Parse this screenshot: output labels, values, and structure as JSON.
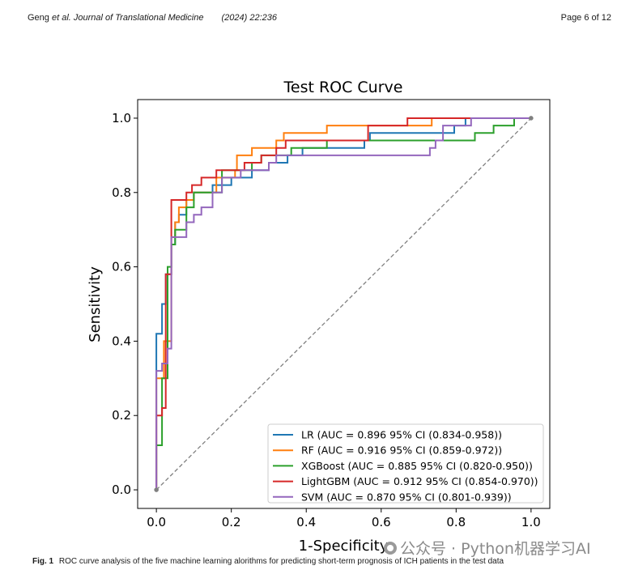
{
  "header": {
    "authors": "Geng ",
    "et_al": "et al.",
    "journal": " Journal of Translational Medicine",
    "citation": "(2024) 22:236",
    "page": "Page 6 of 12"
  },
  "caption": {
    "label": "Fig. 1",
    "text": "ROC curve analysis of the five machine learning alorithms for predicting short-term prognosis of ICH patients in the test data"
  },
  "watermark": {
    "text": "公众号 · Python机器学习AI",
    "icon": "wechat-icon"
  },
  "chart_data": {
    "type": "line",
    "title": "Test ROC Curve",
    "xlabel": "1-Specificity",
    "ylabel": "Sensitivity",
    "xlim": [
      -0.05,
      1.05
    ],
    "ylim": [
      -0.05,
      1.05
    ],
    "xticks": [
      0.0,
      0.2,
      0.4,
      0.6,
      0.8,
      1.0
    ],
    "yticks": [
      0.0,
      0.2,
      0.4,
      0.6,
      0.8,
      1.0
    ],
    "xtick_labels": [
      "0.0",
      "0.2",
      "0.4",
      "0.6",
      "0.8",
      "1.0"
    ],
    "ytick_labels": [
      "0.0",
      "0.2",
      "0.4",
      "0.6",
      "0.8",
      "1.0"
    ],
    "legend_position": "lower-right",
    "diagonal": {
      "color": "#808080",
      "x": [
        0,
        1
      ],
      "y": [
        0,
        1
      ]
    },
    "series": [
      {
        "name": "LR (AUC = 0.896 95% CI (0.834-0.958))",
        "color": "#1f77b4",
        "points": [
          [
            0,
            0
          ],
          [
            0,
            0.42
          ],
          [
            0.015,
            0.42
          ],
          [
            0.015,
            0.5
          ],
          [
            0.025,
            0.5
          ],
          [
            0.025,
            0.58
          ],
          [
            0.04,
            0.58
          ],
          [
            0.04,
            0.66
          ],
          [
            0.05,
            0.66
          ],
          [
            0.05,
            0.72
          ],
          [
            0.06,
            0.72
          ],
          [
            0.06,
            0.74
          ],
          [
            0.08,
            0.74
          ],
          [
            0.08,
            0.78
          ],
          [
            0.1,
            0.78
          ],
          [
            0.1,
            0.8
          ],
          [
            0.15,
            0.8
          ],
          [
            0.15,
            0.82
          ],
          [
            0.2,
            0.82
          ],
          [
            0.2,
            0.84
          ],
          [
            0.255,
            0.84
          ],
          [
            0.255,
            0.86
          ],
          [
            0.3,
            0.86
          ],
          [
            0.3,
            0.88
          ],
          [
            0.35,
            0.88
          ],
          [
            0.35,
            0.9
          ],
          [
            0.39,
            0.9
          ],
          [
            0.39,
            0.92
          ],
          [
            0.555,
            0.92
          ],
          [
            0.555,
            0.94
          ],
          [
            0.57,
            0.94
          ],
          [
            0.57,
            0.96
          ],
          [
            0.795,
            0.96
          ],
          [
            0.795,
            0.98
          ],
          [
            0.825,
            0.98
          ],
          [
            0.825,
            1.0
          ],
          [
            1.0,
            1.0
          ]
        ]
      },
      {
        "name": "RF (AUC = 0.916 95% CI (0.859-0.972))",
        "color": "#ff7f0e",
        "points": [
          [
            0,
            0
          ],
          [
            0,
            0.3
          ],
          [
            0.02,
            0.3
          ],
          [
            0.02,
            0.4
          ],
          [
            0.04,
            0.4
          ],
          [
            0.04,
            0.68
          ],
          [
            0.05,
            0.68
          ],
          [
            0.05,
            0.72
          ],
          [
            0.06,
            0.72
          ],
          [
            0.06,
            0.76
          ],
          [
            0.08,
            0.76
          ],
          [
            0.08,
            0.78
          ],
          [
            0.1,
            0.78
          ],
          [
            0.1,
            0.8
          ],
          [
            0.16,
            0.8
          ],
          [
            0.16,
            0.84
          ],
          [
            0.21,
            0.84
          ],
          [
            0.21,
            0.86
          ],
          [
            0.215,
            0.86
          ],
          [
            0.215,
            0.9
          ],
          [
            0.255,
            0.9
          ],
          [
            0.255,
            0.92
          ],
          [
            0.32,
            0.92
          ],
          [
            0.32,
            0.94
          ],
          [
            0.34,
            0.94
          ],
          [
            0.34,
            0.96
          ],
          [
            0.455,
            0.96
          ],
          [
            0.455,
            0.98
          ],
          [
            0.61,
            0.98
          ],
          [
            0.61,
            0.98
          ],
          [
            0.735,
            0.98
          ],
          [
            0.735,
            1.0
          ],
          [
            1.0,
            1.0
          ]
        ]
      },
      {
        "name": "XGBoost (AUC = 0.885 95% CI (0.820-0.950))",
        "color": "#2ca02c",
        "points": [
          [
            0,
            0
          ],
          [
            0,
            0.12
          ],
          [
            0.015,
            0.12
          ],
          [
            0.015,
            0.3
          ],
          [
            0.03,
            0.3
          ],
          [
            0.03,
            0.6
          ],
          [
            0.04,
            0.6
          ],
          [
            0.04,
            0.66
          ],
          [
            0.05,
            0.66
          ],
          [
            0.05,
            0.7
          ],
          [
            0.08,
            0.7
          ],
          [
            0.08,
            0.76
          ],
          [
            0.1,
            0.76
          ],
          [
            0.1,
            0.8
          ],
          [
            0.175,
            0.8
          ],
          [
            0.175,
            0.86
          ],
          [
            0.255,
            0.86
          ],
          [
            0.255,
            0.88
          ],
          [
            0.28,
            0.88
          ],
          [
            0.28,
            0.9
          ],
          [
            0.36,
            0.9
          ],
          [
            0.36,
            0.92
          ],
          [
            0.455,
            0.92
          ],
          [
            0.455,
            0.94
          ],
          [
            0.755,
            0.94
          ],
          [
            0.755,
            0.94
          ],
          [
            0.85,
            0.94
          ],
          [
            0.85,
            0.96
          ],
          [
            0.9,
            0.96
          ],
          [
            0.9,
            0.98
          ],
          [
            0.955,
            0.98
          ],
          [
            0.955,
            1.0
          ],
          [
            1.0,
            1.0
          ]
        ]
      },
      {
        "name": "LightGBM (AUC = 0.912 95% CI (0.854-0.970))",
        "color": "#d62728",
        "points": [
          [
            0,
            0
          ],
          [
            0,
            0.2
          ],
          [
            0.015,
            0.2
          ],
          [
            0.015,
            0.22
          ],
          [
            0.025,
            0.22
          ],
          [
            0.025,
            0.58
          ],
          [
            0.04,
            0.58
          ],
          [
            0.04,
            0.78
          ],
          [
            0.08,
            0.78
          ],
          [
            0.08,
            0.8
          ],
          [
            0.095,
            0.8
          ],
          [
            0.095,
            0.82
          ],
          [
            0.12,
            0.82
          ],
          [
            0.12,
            0.84
          ],
          [
            0.16,
            0.84
          ],
          [
            0.16,
            0.86
          ],
          [
            0.235,
            0.86
          ],
          [
            0.235,
            0.88
          ],
          [
            0.28,
            0.88
          ],
          [
            0.28,
            0.9
          ],
          [
            0.32,
            0.9
          ],
          [
            0.32,
            0.92
          ],
          [
            0.345,
            0.92
          ],
          [
            0.345,
            0.94
          ],
          [
            0.565,
            0.94
          ],
          [
            0.565,
            0.98
          ],
          [
            0.67,
            0.98
          ],
          [
            0.67,
            1.0
          ],
          [
            1.0,
            1.0
          ]
        ]
      },
      {
        "name": "SVM (AUC = 0.870 95% CI (0.801-0.939))",
        "color": "#9467bd",
        "points": [
          [
            0,
            0
          ],
          [
            0,
            0.32
          ],
          [
            0.015,
            0.32
          ],
          [
            0.015,
            0.34
          ],
          [
            0.03,
            0.34
          ],
          [
            0.03,
            0.38
          ],
          [
            0.04,
            0.38
          ],
          [
            0.04,
            0.68
          ],
          [
            0.08,
            0.68
          ],
          [
            0.08,
            0.72
          ],
          [
            0.1,
            0.72
          ],
          [
            0.1,
            0.74
          ],
          [
            0.12,
            0.74
          ],
          [
            0.12,
            0.76
          ],
          [
            0.15,
            0.76
          ],
          [
            0.15,
            0.8
          ],
          [
            0.175,
            0.8
          ],
          [
            0.175,
            0.84
          ],
          [
            0.225,
            0.84
          ],
          [
            0.225,
            0.86
          ],
          [
            0.3,
            0.86
          ],
          [
            0.3,
            0.88
          ],
          [
            0.32,
            0.88
          ],
          [
            0.32,
            0.9
          ],
          [
            0.73,
            0.9
          ],
          [
            0.73,
            0.92
          ],
          [
            0.745,
            0.92
          ],
          [
            0.745,
            0.94
          ],
          [
            0.765,
            0.94
          ],
          [
            0.765,
            0.98
          ],
          [
            0.84,
            0.98
          ],
          [
            0.84,
            1.0
          ],
          [
            1.0,
            1.0
          ]
        ]
      }
    ]
  }
}
